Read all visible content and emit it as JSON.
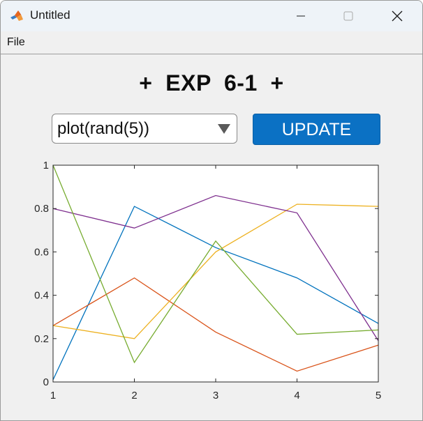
{
  "window": {
    "title": "Untitled",
    "app_icon": "matlab-logo-icon",
    "controls": [
      "minimize-icon",
      "maximize-icon",
      "close-icon"
    ]
  },
  "menu": {
    "items": [
      {
        "label": "File"
      }
    ]
  },
  "main": {
    "heading": "+  EXP  6-1  +",
    "dropdown": {
      "value": "plot(rand(5))",
      "icon": "caret-down-icon"
    },
    "update_label": "UPDATE",
    "colors": {
      "button_bg": "#0b71c4",
      "window_bg": "#f0f0f0",
      "titlebar_bg": "#eef3f8"
    }
  },
  "chart_data": {
    "type": "line",
    "x": [
      1,
      2,
      3,
      4,
      5
    ],
    "xlim": [
      1,
      5
    ],
    "ylim": [
      0,
      1
    ],
    "xticks": [
      "1",
      "2",
      "3",
      "4",
      "5"
    ],
    "yticks": [
      "0",
      "0.2",
      "0.4",
      "0.6",
      "0.8",
      "1"
    ],
    "grid": false,
    "title": "",
    "xlabel": "",
    "ylabel": "",
    "series": [
      {
        "color": "#0072bd",
        "values": [
          0.01,
          0.81,
          0.62,
          0.48,
          0.27
        ]
      },
      {
        "color": "#d95319",
        "values": [
          0.26,
          0.48,
          0.23,
          0.05,
          0.17
        ]
      },
      {
        "color": "#edb120",
        "values": [
          0.26,
          0.2,
          0.6,
          0.82,
          0.81
        ]
      },
      {
        "color": "#7e2f8e",
        "values": [
          0.8,
          0.71,
          0.86,
          0.78,
          0.19
        ]
      },
      {
        "color": "#77ac30",
        "values": [
          1.0,
          0.09,
          0.65,
          0.22,
          0.24
        ]
      }
    ]
  }
}
